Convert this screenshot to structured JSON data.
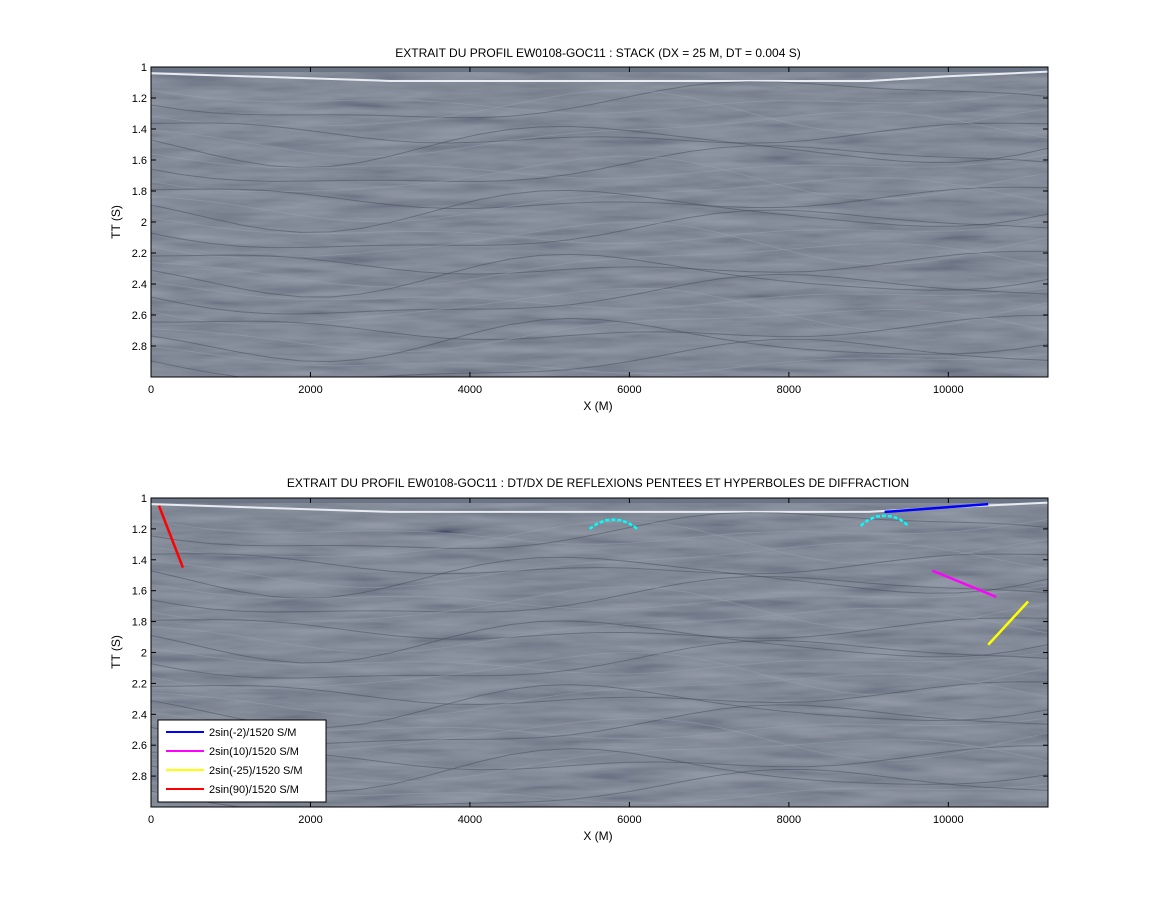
{
  "chart_data": [
    {
      "type": "heatmap",
      "title": "EXTRAIT DU PROFIL EW0108-GOC11 : STACK (DX = 25 M, DT = 0.004 S)",
      "xlabel": "X (M)",
      "ylabel": "TT (S)",
      "xlim": [
        0,
        11250
      ],
      "ylim": [
        1,
        3
      ],
      "y_reversed": true,
      "colormap": "gray",
      "background_color": "#6b7585",
      "x_ticks": [
        0,
        2000,
        4000,
        6000,
        8000,
        10000
      ],
      "x_tick_labels": [
        "0",
        "2000",
        "4000",
        "6000",
        "8000",
        "10000"
      ],
      "y_ticks": [
        1,
        1.2,
        1.4,
        1.6,
        1.8,
        2,
        2.2,
        2.4,
        2.6,
        2.8
      ],
      "y_tick_labels": [
        "1",
        "1.2",
        "1.4",
        "1.6",
        "1.8",
        "2",
        "2.2",
        "2.4",
        "2.6",
        "2.8"
      ],
      "seafloor": [
        [
          0,
          1.04
        ],
        [
          3000,
          1.09
        ],
        [
          5000,
          1.09
        ],
        [
          7000,
          1.09
        ],
        [
          9000,
          1.09
        ],
        [
          10000,
          1.06
        ],
        [
          11250,
          1.03
        ]
      ],
      "series": []
    },
    {
      "type": "heatmap",
      "title": "EXTRAIT DU PROFIL EW0108-GOC11 : DT/DX DE REFLEXIONS PENTEES ET HYPERBOLES DE DIFFRACTION",
      "xlabel": "X (M)",
      "ylabel": "TT (S)",
      "xlim": [
        0,
        11250
      ],
      "ylim": [
        1,
        3
      ],
      "y_reversed": true,
      "colormap": "gray",
      "background_color": "#6b7585",
      "x_ticks": [
        0,
        2000,
        4000,
        6000,
        8000,
        10000
      ],
      "x_tick_labels": [
        "0",
        "2000",
        "4000",
        "6000",
        "8000",
        "10000"
      ],
      "y_ticks": [
        1,
        1.2,
        1.4,
        1.6,
        1.8,
        2,
        2.2,
        2.4,
        2.6,
        2.8
      ],
      "y_tick_labels": [
        "1",
        "1.2",
        "1.4",
        "1.6",
        "1.8",
        "2",
        "2.2",
        "2.4",
        "2.6",
        "2.8"
      ],
      "seafloor": [
        [
          0,
          1.04
        ],
        [
          3000,
          1.09
        ],
        [
          5000,
          1.09
        ],
        [
          7000,
          1.09
        ],
        [
          9000,
          1.09
        ],
        [
          10000,
          1.06
        ],
        [
          11250,
          1.03
        ]
      ],
      "legend_position": "bottom-left",
      "series": [
        {
          "name": "2sin(-2)/1520 S/M",
          "color": "#0000ff",
          "x": [
            9200,
            10500
          ],
          "y": [
            1.09,
            1.04
          ]
        },
        {
          "name": "2sin(10)/1520 S/M",
          "color": "#ff00ff",
          "x": [
            9800,
            10600
          ],
          "y": [
            1.47,
            1.64
          ]
        },
        {
          "name": "2sin(-25)/1520 S/M",
          "color": "#ffff00",
          "x": [
            10500,
            11000
          ],
          "y": [
            1.95,
            1.67
          ]
        },
        {
          "name": "2sin(90)/1520 S/M",
          "color": "#ff0000",
          "x": [
            100,
            400
          ],
          "y": [
            1.05,
            1.45
          ]
        }
      ],
      "diffraction_hyperbolas": [
        {
          "color": "#00ffff",
          "x": [
            5500,
            5600,
            5700,
            5800,
            5900,
            6000,
            6100
          ],
          "y": [
            1.2,
            1.165,
            1.145,
            1.14,
            1.145,
            1.165,
            1.2
          ]
        },
        {
          "color": "#00ffff",
          "x": [
            8900,
            9000,
            9100,
            9200,
            9300,
            9400,
            9500
          ],
          "y": [
            1.18,
            1.14,
            1.12,
            1.115,
            1.12,
            1.14,
            1.18
          ]
        }
      ]
    }
  ]
}
